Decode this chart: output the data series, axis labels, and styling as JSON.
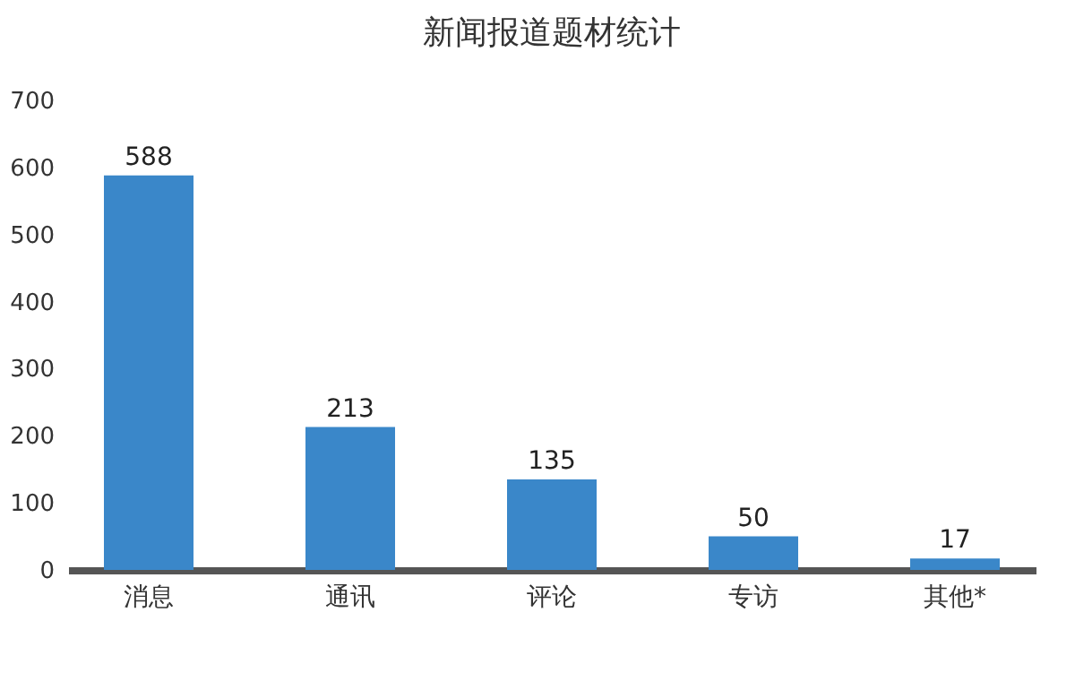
{
  "chart_data": {
    "type": "bar",
    "title": "新闻报道题材统计",
    "categories": [
      "消息",
      "通讯",
      "评论",
      "专访",
      "其他*"
    ],
    "values": [
      588,
      213,
      135,
      50,
      17
    ],
    "color": "#3a87c9",
    "ylim": [
      0,
      700
    ],
    "yticks": [
      0,
      100,
      200,
      300,
      400,
      500,
      600,
      700
    ],
    "grid": false,
    "data_labels": true
  }
}
